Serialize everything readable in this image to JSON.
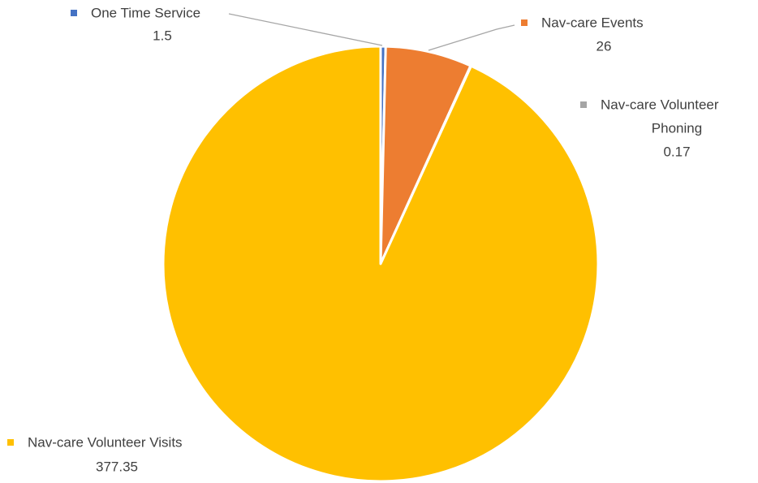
{
  "chart_data": {
    "type": "pie",
    "title": "",
    "slices": [
      {
        "label": "One Time Service",
        "value": 1.5,
        "value_label": "1.5",
        "color": "#4472C4"
      },
      {
        "label": "Nav-care Events",
        "value": 26,
        "value_label": "26",
        "color": "#ED7D31"
      },
      {
        "label": "Nav-care Volunteer Phoning",
        "label_lines": [
          "Nav-care Volunteer",
          "Phoning"
        ],
        "value": 0.17,
        "value_label": "0.17",
        "color": "#A5A5A5"
      },
      {
        "label": "Nav-care Volunteer Visits",
        "value": 377.35,
        "value_label": "377.35",
        "color": "#FFC000"
      }
    ],
    "start_angle_deg": 0,
    "direction": "clockwise",
    "legend": "none",
    "data_labels": "outside-with-leader-lines"
  }
}
